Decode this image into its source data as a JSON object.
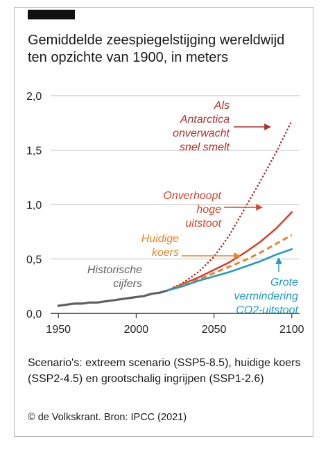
{
  "title_lines": [
    "Gemiddelde zeespiegelstijging wereldwijd",
    "ten opzichte van 1900, in meters"
  ],
  "note": "Scenario's: extreem scenario (SSP5-8.5), huidige koers (SSP2-4.5) en grootschalig ingrijpen (SSP1-2.6)",
  "credit": "© de Volkskrant. Bron: IPCC (2021)",
  "colors": {
    "historic": "#5f5f5f",
    "high": "#d9432b",
    "antarctica": "#b0302a",
    "current": "#e8842a",
    "low": "#1e9bc4",
    "grid": "#bdbdbd",
    "axis": "#333333"
  },
  "chart_data": {
    "type": "line",
    "xlim": [
      1945,
      2105
    ],
    "ylim": [
      0,
      2.0
    ],
    "x_ticks": [
      1950,
      2000,
      2050,
      2100
    ],
    "x_tick_labels": [
      "1950",
      "2000",
      "2050",
      "2100"
    ],
    "y_ticks": [
      0,
      0.5,
      1.0,
      1.5,
      2.0
    ],
    "y_tick_labels": [
      "0,0",
      "0,5",
      "1,0",
      "1,5",
      "2,0"
    ],
    "grid": "horizontal",
    "series": [
      {
        "name": "Historische cijfers",
        "label_lines": [
          "Historische",
          "cijfers"
        ],
        "style": "solid-thick",
        "color_key": "historic",
        "x": [
          1950,
          1955,
          1960,
          1965,
          1970,
          1975,
          1980,
          1985,
          1990,
          1995,
          2000,
          2005,
          2010,
          2015,
          2020
        ],
        "y": [
          0.07,
          0.08,
          0.09,
          0.09,
          0.1,
          0.1,
          0.11,
          0.12,
          0.13,
          0.14,
          0.15,
          0.16,
          0.18,
          0.19,
          0.21
        ]
      },
      {
        "name": "Als Antarctica onverwacht snel smelt",
        "label_lines": [
          "Als",
          "Antarctica",
          "onverwacht",
          "snel smelt"
        ],
        "style": "dotted",
        "color_key": "antarctica",
        "x": [
          2020,
          2030,
          2040,
          2050,
          2060,
          2070,
          2080,
          2090,
          2100
        ],
        "y": [
          0.21,
          0.28,
          0.38,
          0.52,
          0.72,
          0.97,
          1.22,
          1.48,
          1.77
        ]
      },
      {
        "name": "Onverhoopt hoge uitstoot",
        "label_lines": [
          "Onverhoopt",
          "hoge",
          "uitstoot"
        ],
        "style": "solid",
        "color_key": "high",
        "x": [
          2020,
          2030,
          2040,
          2050,
          2060,
          2070,
          2080,
          2090,
          2100
        ],
        "y": [
          0.21,
          0.27,
          0.33,
          0.4,
          0.47,
          0.56,
          0.66,
          0.78,
          0.93
        ]
      },
      {
        "name": "Huidige koers",
        "label_lines": [
          "Huidige",
          "koers"
        ],
        "style": "dashed",
        "color_key": "current",
        "x": [
          2020,
          2030,
          2040,
          2050,
          2060,
          2070,
          2080,
          2090,
          2100
        ],
        "y": [
          0.21,
          0.26,
          0.31,
          0.37,
          0.43,
          0.49,
          0.56,
          0.64,
          0.72
        ]
      },
      {
        "name": "Grote vermindering CO2-uitstoot",
        "label_lines": [
          "Grote",
          "vermindering",
          "CO2-uitstoot"
        ],
        "style": "solid",
        "color_key": "low",
        "x": [
          2020,
          2030,
          2040,
          2050,
          2060,
          2070,
          2080,
          2090,
          2100
        ],
        "y": [
          0.21,
          0.25,
          0.3,
          0.34,
          0.38,
          0.43,
          0.48,
          0.54,
          0.59
        ]
      }
    ]
  }
}
